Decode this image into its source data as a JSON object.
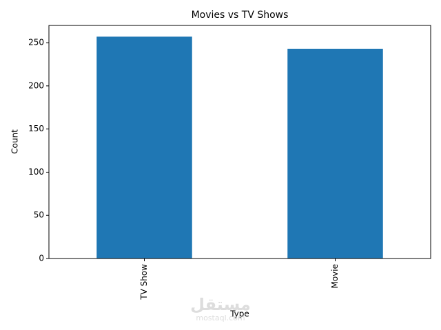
{
  "chart_data": {
    "type": "bar",
    "title": "Movies vs TV Shows",
    "x_label": "Type",
    "y_label": "Count",
    "categories": [
      "TV Show",
      "Movie"
    ],
    "values": [
      257,
      243
    ],
    "color": "#1f77b4",
    "ylim": [
      0,
      270
    ],
    "yticks": [
      0,
      50,
      100,
      150,
      200,
      250
    ],
    "grid": false
  },
  "watermark": {
    "arabic": "مستقل",
    "site": "mostaql.com"
  }
}
